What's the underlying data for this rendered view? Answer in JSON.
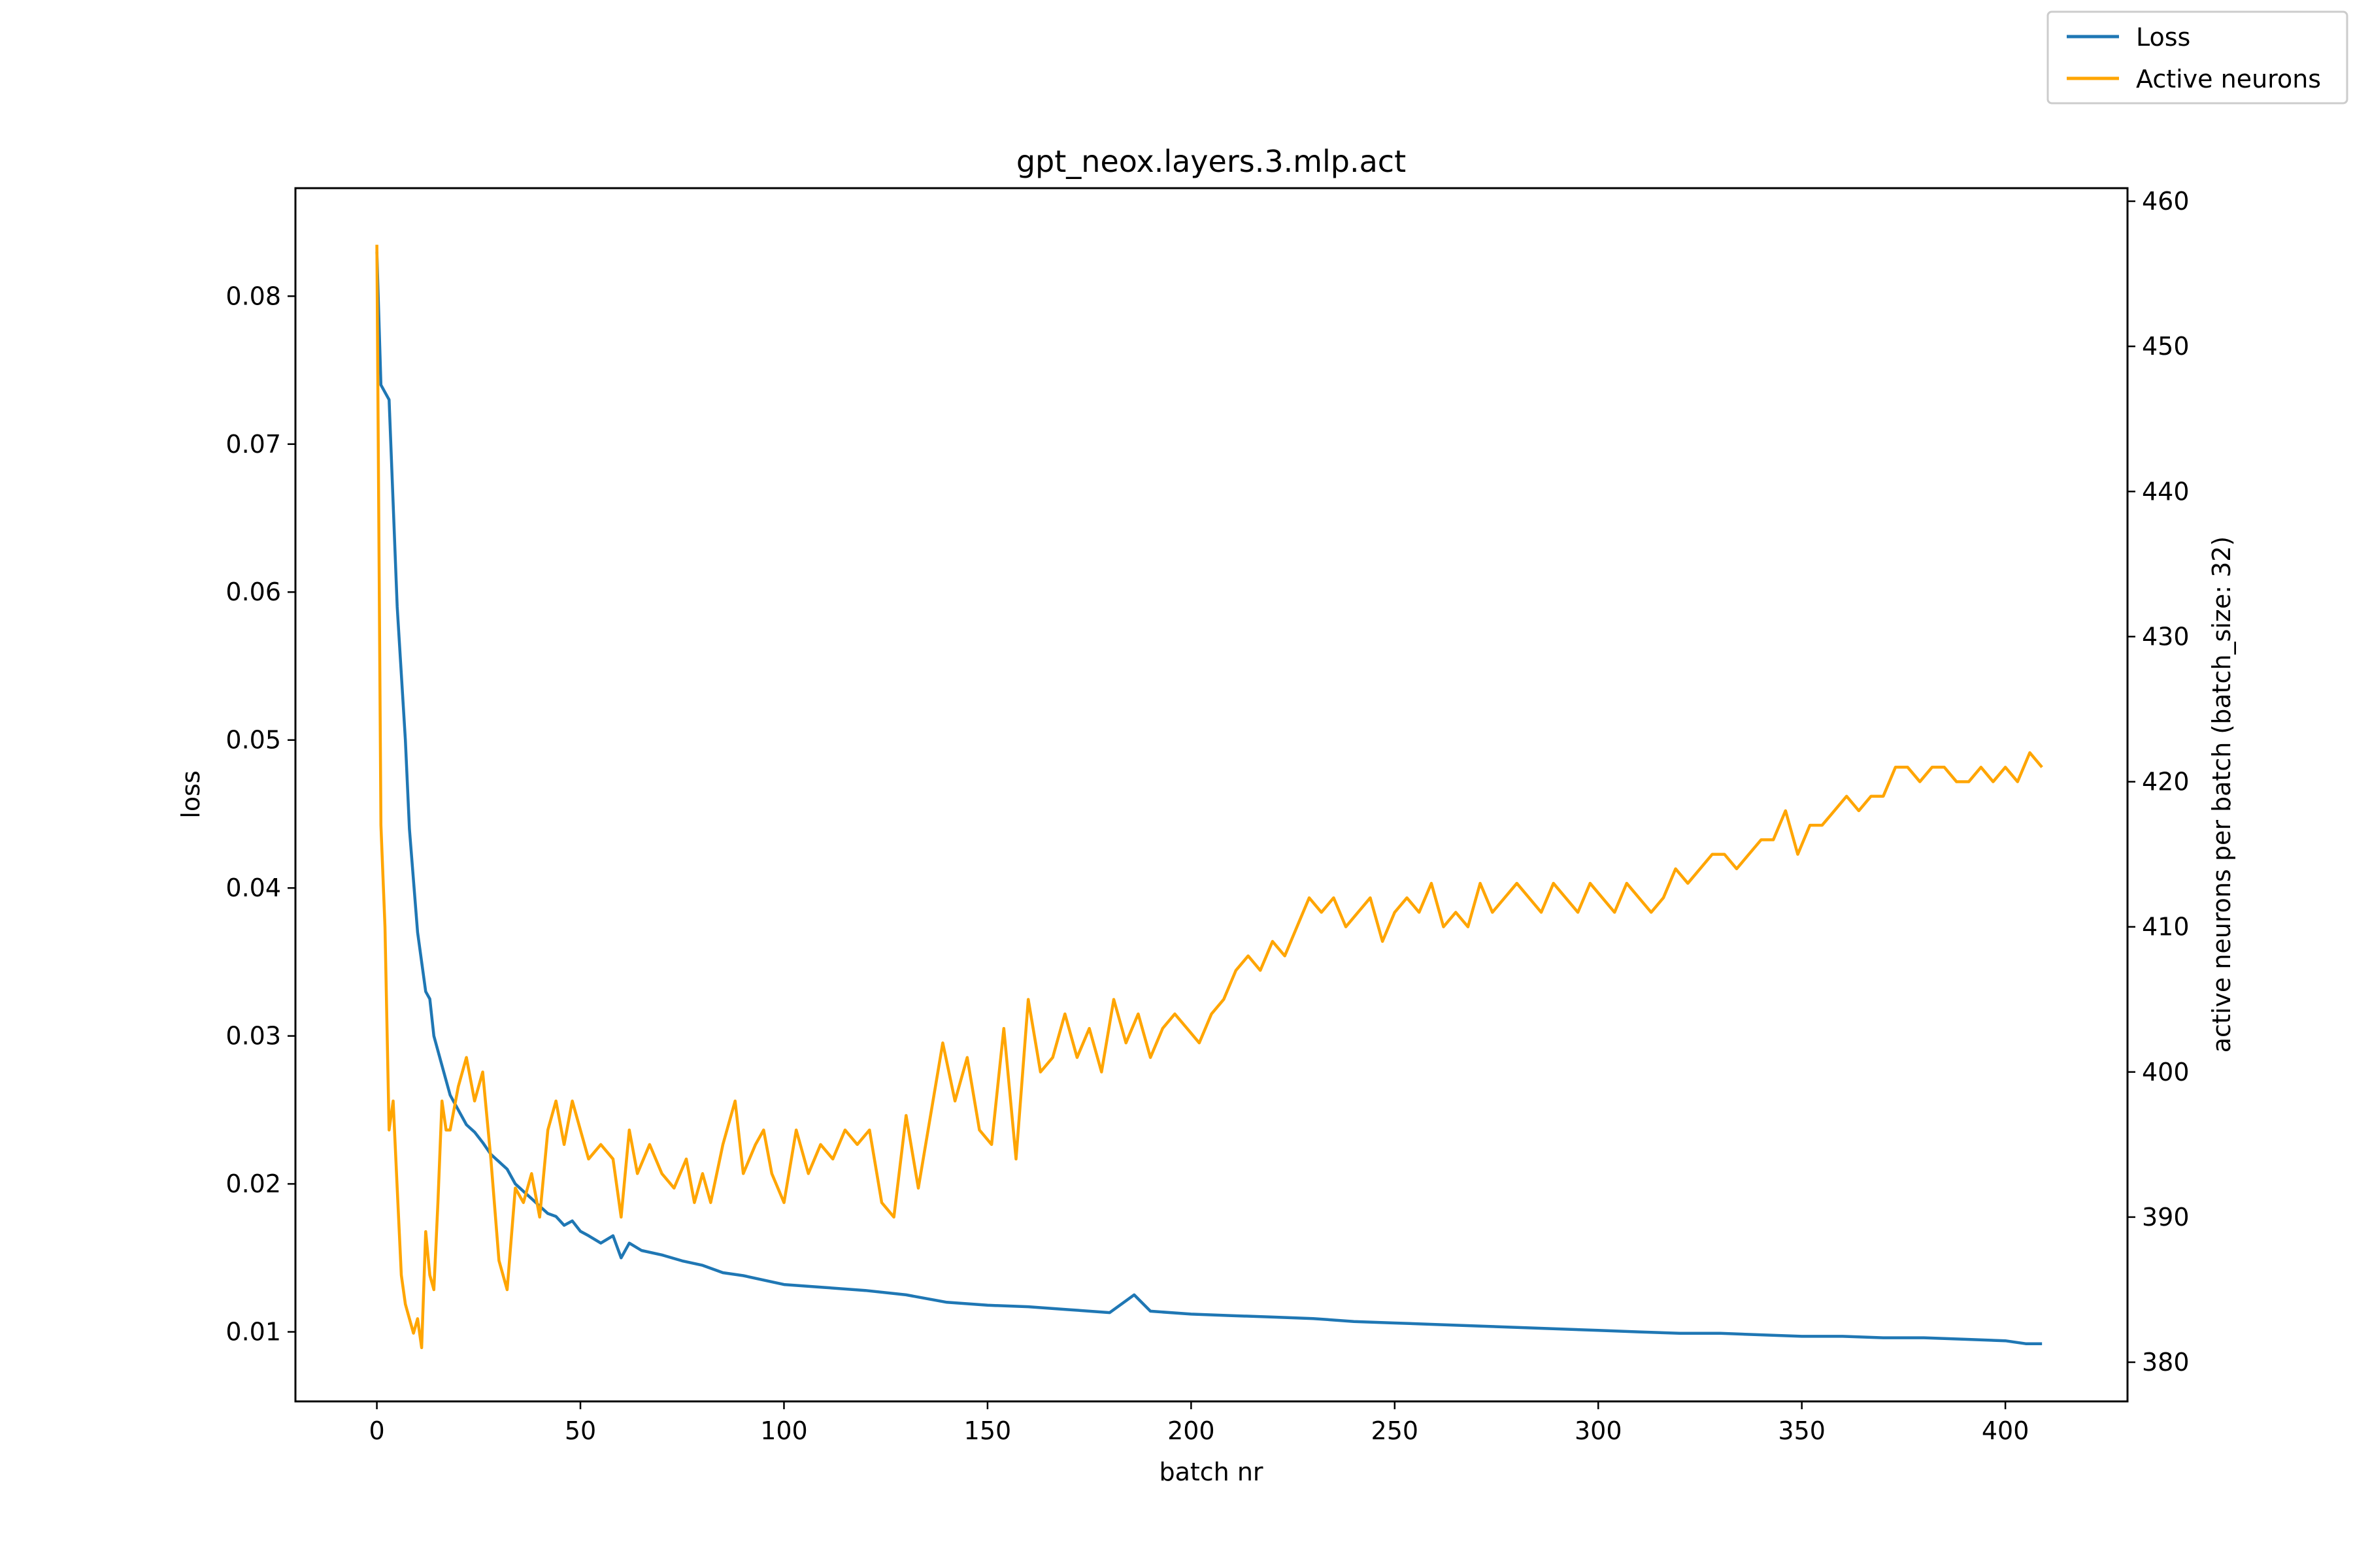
{
  "chart_data": {
    "type": "line",
    "title": "gpt_neox.layers.3.mlp.act",
    "xlabel": "batch nr",
    "ylabel": "loss",
    "y2label": "active neurons per batch (batch_size: 32)",
    "xlim": [
      -20,
      430
    ],
    "ylim": [
      0.0053,
      0.0873
    ],
    "y2lim": [
      377.3,
      460.9
    ],
    "xticks": [
      0,
      50,
      100,
      150,
      200,
      250,
      300,
      350,
      400
    ],
    "yticks": [
      0.01,
      0.02,
      0.03,
      0.04,
      0.05,
      0.06,
      0.07,
      0.08
    ],
    "y2ticks": [
      380,
      390,
      400,
      410,
      420,
      430,
      440,
      450,
      460
    ],
    "legend_position": "top-right (outside plot)",
    "grid": false,
    "series": [
      {
        "name": "Loss",
        "axis": "left",
        "color": "#1f77b4",
        "points": [
          [
            0,
            0.083
          ],
          [
            1,
            0.074
          ],
          [
            3,
            0.073
          ],
          [
            5,
            0.059
          ],
          [
            7,
            0.05
          ],
          [
            8,
            0.044
          ],
          [
            10,
            0.037
          ],
          [
            12,
            0.033
          ],
          [
            13,
            0.0325
          ],
          [
            14,
            0.03
          ],
          [
            16,
            0.028
          ],
          [
            18,
            0.026
          ],
          [
            20,
            0.025
          ],
          [
            22,
            0.024
          ],
          [
            24,
            0.0235
          ],
          [
            26,
            0.0228
          ],
          [
            28,
            0.022
          ],
          [
            30,
            0.0215
          ],
          [
            32,
            0.021
          ],
          [
            34,
            0.02
          ],
          [
            36,
            0.0195
          ],
          [
            38,
            0.019
          ],
          [
            40,
            0.0185
          ],
          [
            42,
            0.018
          ],
          [
            44,
            0.0178
          ],
          [
            46,
            0.0172
          ],
          [
            48,
            0.0175
          ],
          [
            50,
            0.0168
          ],
          [
            52,
            0.0165
          ],
          [
            55,
            0.016
          ],
          [
            58,
            0.0165
          ],
          [
            60,
            0.015
          ],
          [
            62,
            0.016
          ],
          [
            65,
            0.0155
          ],
          [
            70,
            0.0152
          ],
          [
            75,
            0.0148
          ],
          [
            80,
            0.0145
          ],
          [
            85,
            0.014
          ],
          [
            90,
            0.0138
          ],
          [
            95,
            0.0135
          ],
          [
            100,
            0.0132
          ],
          [
            110,
            0.013
          ],
          [
            120,
            0.0128
          ],
          [
            130,
            0.0125
          ],
          [
            140,
            0.012
          ],
          [
            150,
            0.0118
          ],
          [
            160,
            0.0117
          ],
          [
            170,
            0.0115
          ],
          [
            180,
            0.0113
          ],
          [
            186,
            0.0125
          ],
          [
            190,
            0.0114
          ],
          [
            200,
            0.0112
          ],
          [
            210,
            0.0111
          ],
          [
            220,
            0.011
          ],
          [
            230,
            0.0109
          ],
          [
            240,
            0.0107
          ],
          [
            250,
            0.0106
          ],
          [
            260,
            0.0105
          ],
          [
            270,
            0.0104
          ],
          [
            280,
            0.0103
          ],
          [
            290,
            0.0102
          ],
          [
            300,
            0.0101
          ],
          [
            310,
            0.01
          ],
          [
            320,
            0.0099
          ],
          [
            330,
            0.0099
          ],
          [
            340,
            0.0098
          ],
          [
            350,
            0.0097
          ],
          [
            360,
            0.0097
          ],
          [
            370,
            0.0096
          ],
          [
            380,
            0.0096
          ],
          [
            390,
            0.0095
          ],
          [
            400,
            0.0094
          ],
          [
            405,
            0.0092
          ],
          [
            409,
            0.0092
          ]
        ]
      },
      {
        "name": "Active neurons",
        "axis": "right",
        "color": "#ffa500",
        "points": [
          [
            0,
            457
          ],
          [
            1,
            417
          ],
          [
            2,
            410
          ],
          [
            3,
            396
          ],
          [
            4,
            398
          ],
          [
            5,
            392
          ],
          [
            6,
            386
          ],
          [
            7,
            384
          ],
          [
            8,
            383
          ],
          [
            9,
            382
          ],
          [
            10,
            383
          ],
          [
            11,
            381
          ],
          [
            12,
            389
          ],
          [
            13,
            386
          ],
          [
            14,
            385
          ],
          [
            15,
            391
          ],
          [
            16,
            398
          ],
          [
            17,
            396
          ],
          [
            18,
            396
          ],
          [
            20,
            399
          ],
          [
            22,
            401
          ],
          [
            24,
            398
          ],
          [
            26,
            400
          ],
          [
            28,
            394
          ],
          [
            30,
            387
          ],
          [
            32,
            385
          ],
          [
            34,
            392
          ],
          [
            36,
            391
          ],
          [
            38,
            393
          ],
          [
            40,
            390
          ],
          [
            42,
            396
          ],
          [
            44,
            398
          ],
          [
            46,
            395
          ],
          [
            48,
            398
          ],
          [
            50,
            396
          ],
          [
            52,
            394
          ],
          [
            55,
            395
          ],
          [
            58,
            394
          ],
          [
            60,
            390
          ],
          [
            62,
            396
          ],
          [
            64,
            393
          ],
          [
            67,
            395
          ],
          [
            70,
            393
          ],
          [
            73,
            392
          ],
          [
            76,
            394
          ],
          [
            78,
            391
          ],
          [
            80,
            393
          ],
          [
            82,
            391
          ],
          [
            85,
            395
          ],
          [
            88,
            398
          ],
          [
            90,
            393
          ],
          [
            93,
            395
          ],
          [
            95,
            396
          ],
          [
            97,
            393
          ],
          [
            100,
            391
          ],
          [
            103,
            396
          ],
          [
            106,
            393
          ],
          [
            109,
            395
          ],
          [
            112,
            394
          ],
          [
            115,
            396
          ],
          [
            118,
            395
          ],
          [
            121,
            396
          ],
          [
            124,
            391
          ],
          [
            127,
            390
          ],
          [
            130,
            397
          ],
          [
            133,
            392
          ],
          [
            136,
            397
          ],
          [
            139,
            402
          ],
          [
            142,
            398
          ],
          [
            145,
            401
          ],
          [
            148,
            396
          ],
          [
            151,
            395
          ],
          [
            154,
            403
          ],
          [
            157,
            394
          ],
          [
            160,
            405
          ],
          [
            163,
            400
          ],
          [
            166,
            401
          ],
          [
            169,
            404
          ],
          [
            172,
            401
          ],
          [
            175,
            403
          ],
          [
            178,
            400
          ],
          [
            181,
            405
          ],
          [
            184,
            402
          ],
          [
            187,
            404
          ],
          [
            190,
            401
          ],
          [
            193,
            403
          ],
          [
            196,
            404
          ],
          [
            199,
            403
          ],
          [
            202,
            402
          ],
          [
            205,
            404
          ],
          [
            208,
            405
          ],
          [
            211,
            407
          ],
          [
            214,
            408
          ],
          [
            217,
            407
          ],
          [
            220,
            409
          ],
          [
            223,
            408
          ],
          [
            226,
            410
          ],
          [
            229,
            412
          ],
          [
            232,
            411
          ],
          [
            235,
            412
          ],
          [
            238,
            410
          ],
          [
            241,
            411
          ],
          [
            244,
            412
          ],
          [
            247,
            409
          ],
          [
            250,
            411
          ],
          [
            253,
            412
          ],
          [
            256,
            411
          ],
          [
            259,
            413
          ],
          [
            262,
            410
          ],
          [
            265,
            411
          ],
          [
            268,
            410
          ],
          [
            271,
            413
          ],
          [
            274,
            411
          ],
          [
            277,
            412
          ],
          [
            280,
            413
          ],
          [
            283,
            412
          ],
          [
            286,
            411
          ],
          [
            289,
            413
          ],
          [
            292,
            412
          ],
          [
            295,
            411
          ],
          [
            298,
            413
          ],
          [
            301,
            412
          ],
          [
            304,
            411
          ],
          [
            307,
            413
          ],
          [
            310,
            412
          ],
          [
            313,
            411
          ],
          [
            316,
            412
          ],
          [
            319,
            414
          ],
          [
            322,
            413
          ],
          [
            325,
            414
          ],
          [
            328,
            415
          ],
          [
            331,
            415
          ],
          [
            334,
            414
          ],
          [
            337,
            415
          ],
          [
            340,
            416
          ],
          [
            343,
            416
          ],
          [
            346,
            418
          ],
          [
            349,
            415
          ],
          [
            352,
            417
          ],
          [
            355,
            417
          ],
          [
            358,
            418
          ],
          [
            361,
            419
          ],
          [
            364,
            418
          ],
          [
            367,
            419
          ],
          [
            370,
            419
          ],
          [
            373,
            421
          ],
          [
            376,
            421
          ],
          [
            379,
            420
          ],
          [
            382,
            421
          ],
          [
            385,
            421
          ],
          [
            388,
            420
          ],
          [
            391,
            420
          ],
          [
            394,
            421
          ],
          [
            397,
            420
          ],
          [
            400,
            421
          ],
          [
            403,
            420
          ],
          [
            406,
            422
          ],
          [
            409,
            421
          ]
        ]
      }
    ]
  }
}
